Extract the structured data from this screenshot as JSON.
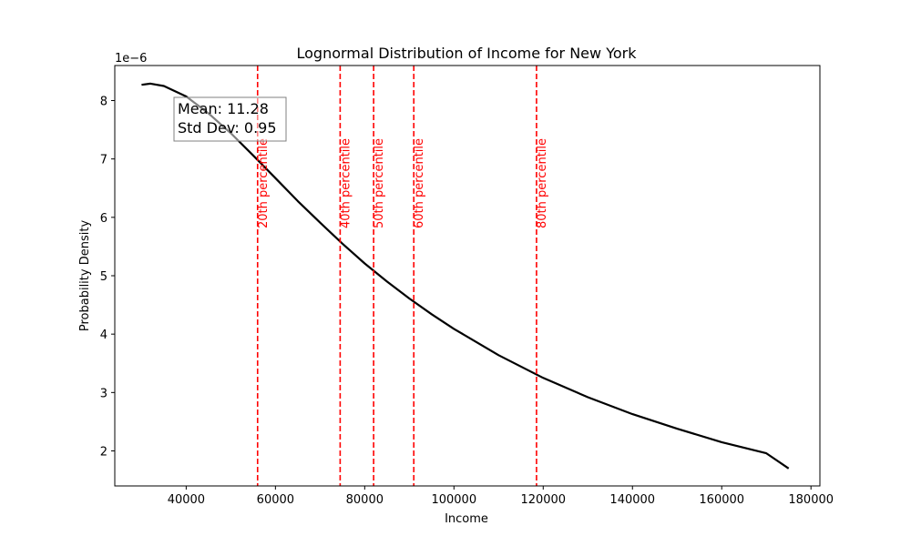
{
  "chart_data": {
    "type": "line",
    "title": "Lognormal Distribution of Income for New York",
    "xlabel": "Income",
    "ylabel": "Probability Density",
    "y_offset_label": "1e−6",
    "xlim": [
      24000,
      182000
    ],
    "ylim": [
      1.4,
      8.6
    ],
    "x_ticks": [
      40000,
      60000,
      80000,
      100000,
      120000,
      140000,
      160000,
      180000
    ],
    "y_ticks": [
      2,
      3,
      4,
      5,
      6,
      7,
      8
    ],
    "series": [
      {
        "color": "#000000",
        "x": [
          30000,
          32000,
          35000,
          40000,
          45000,
          50000,
          55000,
          60000,
          65000,
          70000,
          75000,
          80000,
          85000,
          90000,
          95000,
          100000,
          110000,
          120000,
          130000,
          140000,
          150000,
          160000,
          170000,
          175000
        ],
        "y": [
          8.27,
          8.29,
          8.25,
          8.07,
          7.78,
          7.44,
          7.06,
          6.67,
          6.28,
          5.91,
          5.55,
          5.21,
          4.9,
          4.61,
          4.34,
          4.09,
          3.64,
          3.25,
          2.92,
          2.63,
          2.38,
          2.15,
          1.96,
          1.7
        ]
      }
    ],
    "percentile_lines": [
      {
        "x": 56000,
        "label": "20th percentile"
      },
      {
        "x": 74500,
        "label": "40th percentile"
      },
      {
        "x": 82000,
        "label": "50th percentile"
      },
      {
        "x": 91000,
        "label": "60th percentile"
      },
      {
        "x": 118500,
        "label": "80th percentile"
      }
    ],
    "percentile_color": "#ff0000",
    "stats_box": {
      "mean_text": "Mean: 11.28",
      "std_text": "Std Dev: 0.95"
    },
    "grid": false
  }
}
